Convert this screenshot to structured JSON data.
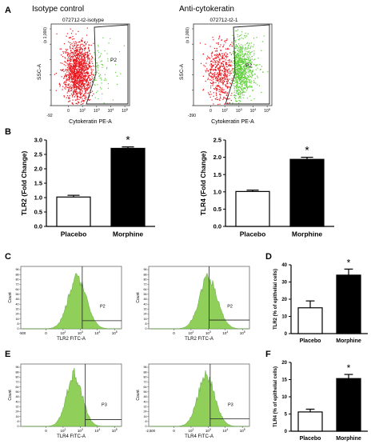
{
  "panels": {
    "A": {
      "letter": "A",
      "left": {
        "header": "Isotype control",
        "plot_title": "072712-t2-isotype",
        "ylabel": "SSC-A",
        "yscale": "(x 1,000)",
        "xlabel": "Cytokeratin PE-A",
        "gate_label": "P2",
        "x_min_label": "-92",
        "x_tick_labels": [
          "0",
          "10^2",
          "10^3",
          "10^4",
          "10^5"
        ],
        "y_tick_labels": [
          "0",
          "50",
          "100",
          "150",
          "200",
          "250"
        ]
      },
      "right": {
        "header": "Anti-cytokeratin",
        "plot_title": "072712-t2-1",
        "ylabel": "SSC-A",
        "yscale": "(x 1,000)",
        "xlabel": "Cytokeratin PE-A",
        "gate_label": "P2",
        "x_min_label": "-390",
        "x_tick_labels": [
          "0",
          "10^2",
          "10^3",
          "10^4",
          "10^5"
        ],
        "y_tick_labels": [
          "0",
          "50",
          "100",
          "150",
          "200",
          "250"
        ]
      },
      "colors": {
        "gated_out": "#e8141c",
        "gated_in": "#5fcf3a"
      }
    },
    "C": {
      "letter": "C",
      "left": {
        "ylabel": "Count",
        "xlabel": "TLR2 FITC-A",
        "gate_label": "P2",
        "x_min_label": "-500",
        "y_tick_labels": [
          "0",
          "8",
          "16",
          "24",
          "32",
          "40",
          "48",
          "56",
          "64",
          "72",
          "80",
          "88",
          "96"
        ],
        "x_tick_labels": [
          "0",
          "10^2",
          "10^3",
          "10^4",
          "10^5"
        ]
      },
      "right": {
        "ylabel": "Count",
        "xlabel": "TLR2 FITC-A",
        "gate_label": "P2",
        "y_tick_labels": [
          "0",
          "8",
          "16",
          "24",
          "32",
          "40",
          "48",
          "56",
          "64",
          "72",
          "80",
          "88",
          "96"
        ],
        "x_tick_labels": [
          "0",
          "10^2",
          "10^3",
          "10^4",
          "10^5"
        ]
      },
      "fill_color": "#8fcf5a"
    },
    "E": {
      "letter": "E",
      "left": {
        "ylabel": "Count",
        "xlabel": "TLR4 FITC-A",
        "gate_label": "P3",
        "y_tick_labels": [
          "0",
          "8",
          "16",
          "24",
          "32",
          "40",
          "48",
          "56",
          "64",
          "72",
          "80",
          "88",
          "96"
        ],
        "x_tick_labels": [
          "0",
          "10^2",
          "10^3",
          "10^4",
          "10^5"
        ]
      },
      "right": {
        "ylabel": "Count",
        "xlabel": "TLR4 FITC-A",
        "gate_label": "P3",
        "x_min_label": "-2,500",
        "y_tick_labels": [
          "0",
          "8",
          "16",
          "24",
          "32",
          "40",
          "48",
          "56",
          "64",
          "72",
          "80",
          "88",
          "96"
        ],
        "x_tick_labels": [
          "0",
          "10^2",
          "10^3",
          "10^4",
          "10^5"
        ]
      },
      "fill_color": "#8fcf5a"
    }
  },
  "chart_data": [
    {
      "id": "B-left",
      "letter": "B",
      "type": "bar",
      "categories": [
        "Placebo",
        "Morphine"
      ],
      "values": [
        1.02,
        2.71
      ],
      "errors": [
        0.06,
        0.05
      ],
      "ylabel": "TLR2 (Fold Change)",
      "ylim": [
        0,
        3.0
      ],
      "y_ticks": [
        "0.0",
        "0.5",
        "1.0",
        "1.5",
        "2.0",
        "2.5",
        "3.0"
      ],
      "annotation": "*",
      "annotation_on": "Morphine",
      "bar_colors": [
        "#ffffff",
        "#000000"
      ]
    },
    {
      "id": "B-right",
      "type": "bar",
      "categories": [
        "Placebo",
        "Morphine"
      ],
      "values": [
        1.01,
        1.94
      ],
      "errors": [
        0.04,
        0.06
      ],
      "ylabel": "TLR4 (Fold Change)",
      "ylim": [
        0,
        2.5
      ],
      "y_ticks": [
        "0.0",
        "0.5",
        "1.0",
        "1.5",
        "2.0",
        "2.5"
      ],
      "annotation": "*",
      "annotation_on": "Morphine",
      "bar_colors": [
        "#ffffff",
        "#000000"
      ]
    },
    {
      "id": "D",
      "letter": "D",
      "type": "bar",
      "categories": [
        "Placebo",
        "Morphine"
      ],
      "values": [
        15,
        34
      ],
      "errors": [
        4,
        3.5
      ],
      "ylabel": "TLR2 (% of epithelial cells)",
      "ylim": [
        0,
        40
      ],
      "y_ticks": [
        "0",
        "10",
        "20",
        "30",
        "40"
      ],
      "annotation": "*",
      "annotation_on": "Morphine",
      "bar_colors": [
        "#ffffff",
        "#000000"
      ]
    },
    {
      "id": "F",
      "letter": "F",
      "type": "bar",
      "categories": [
        "Placebo",
        "Morphine"
      ],
      "values": [
        5.6,
        15.3
      ],
      "errors": [
        0.8,
        1.2
      ],
      "ylabel": "TLR4 (% of epithelial cells)",
      "ylim": [
        0,
        20
      ],
      "y_ticks": [
        "0",
        "5",
        "10",
        "15",
        "20"
      ],
      "annotation": "*",
      "annotation_on": "Morphine",
      "bar_colors": [
        "#ffffff",
        "#000000"
      ]
    }
  ]
}
